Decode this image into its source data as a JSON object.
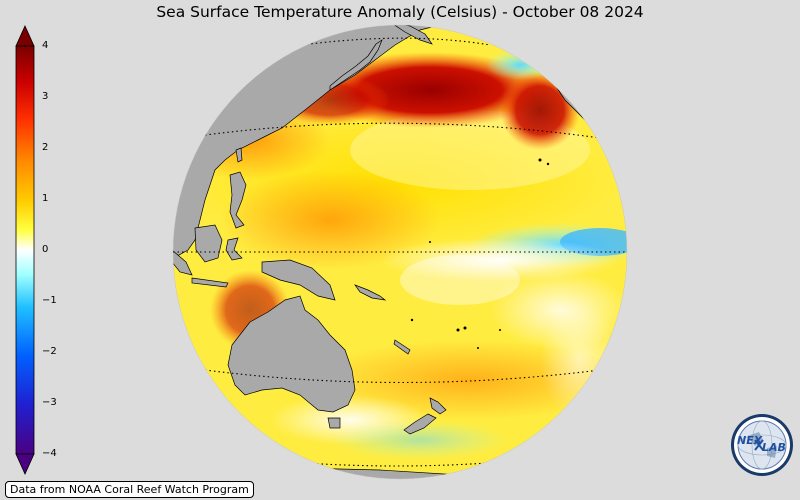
{
  "title": "Sea Surface Temperature Anomaly (Celsius) - October 08 2024",
  "colorbar": {
    "ticks": [
      "4",
      "3",
      "2",
      "1",
      "0",
      "−1",
      "−2",
      "−3",
      "−4"
    ],
    "min": -4,
    "max": 4,
    "colors": {
      "high": "#800000",
      "warm": "#ff8000",
      "mild": "#ffff00",
      "neutral": "#ffffff",
      "cool": "#00ffff",
      "cold": "#0050ff",
      "low": "#4b0082"
    }
  },
  "map": {
    "projection": "orthographic",
    "land_color": "#a9a9a9",
    "background_color": "#dcdcdc"
  },
  "credit": "Data from NOAA Coral Reef Watch Program",
  "logo": {
    "text_part1": "NEX",
    "text_part2": "LAB"
  }
}
